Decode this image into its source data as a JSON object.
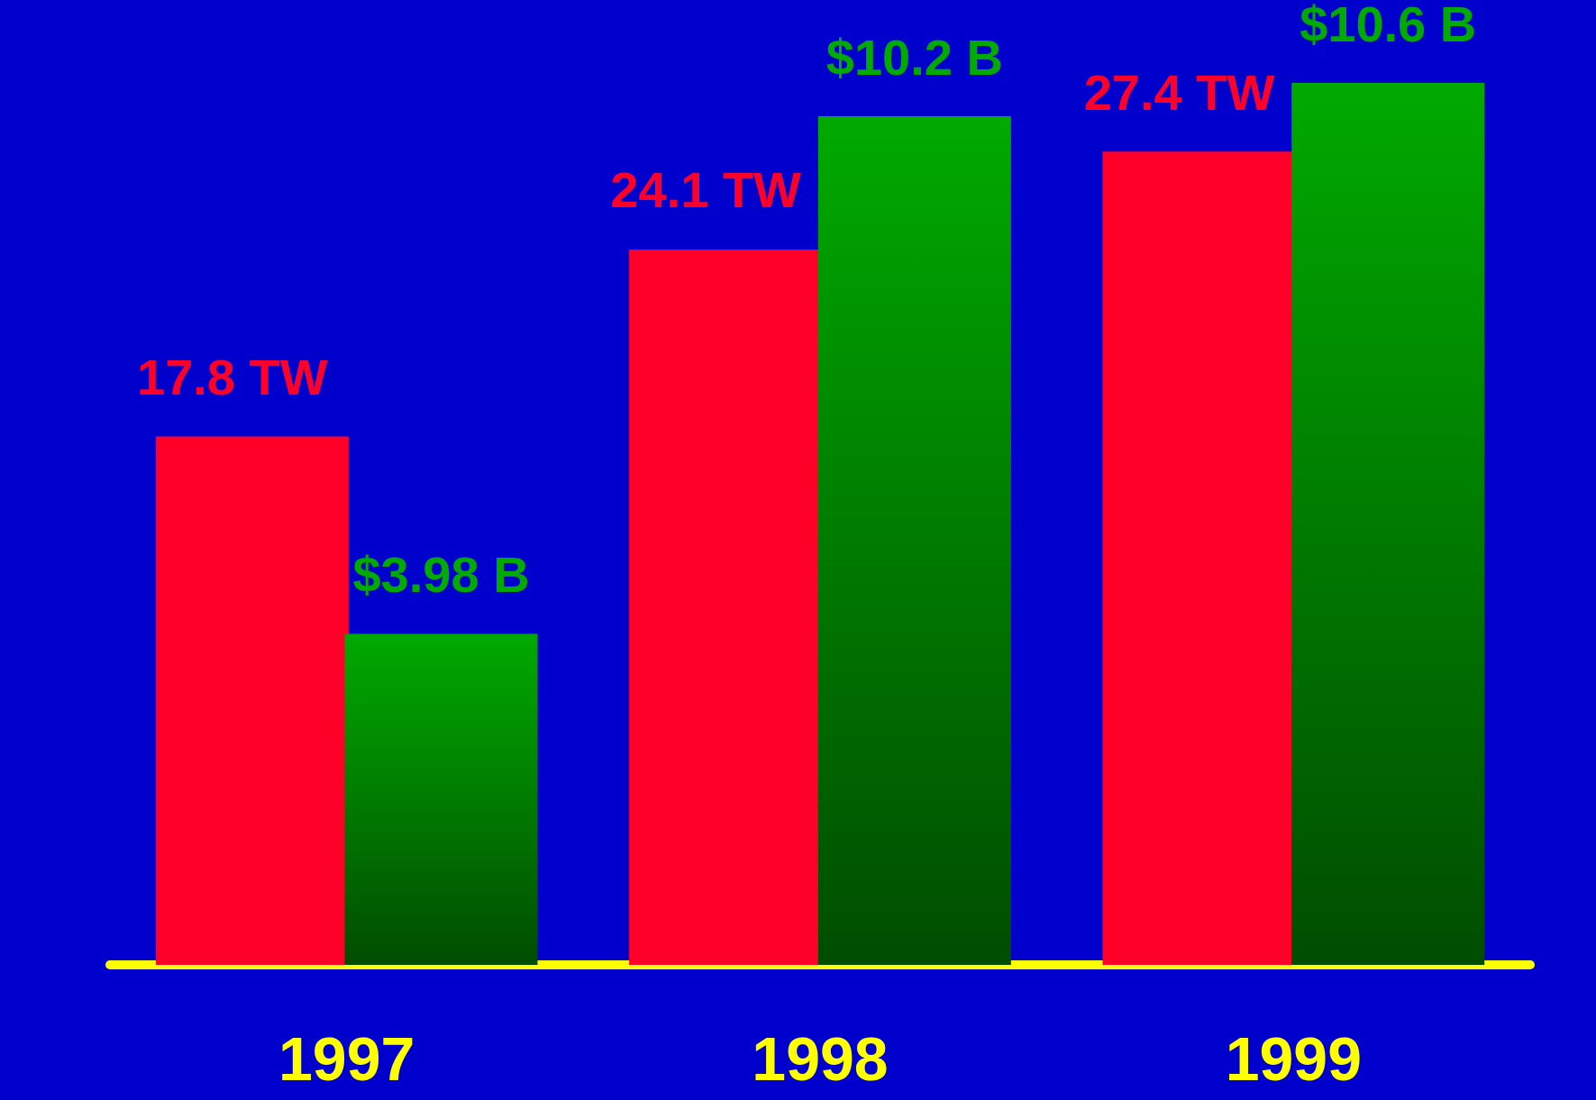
{
  "chart_data": {
    "type": "bar",
    "categories": [
      "1997",
      "1998",
      "1999"
    ],
    "tick_labels": "x",
    "grid": false,
    "series": [
      {
        "color": "#ff0029",
        "values": [
          17.8,
          24.1,
          27.4
        ],
        "value_labels": [
          "17.8 TW",
          "24.1 TW",
          "27.4 TW"
        ]
      },
      {
        "color": "#00aa00",
        "axis": "y2",
        "values": [
          3.98,
          10.2,
          10.6
        ],
        "value_labels": [
          "$3.98 B",
          "$10.2 B",
          "$10.6 B"
        ]
      }
    ]
  }
}
